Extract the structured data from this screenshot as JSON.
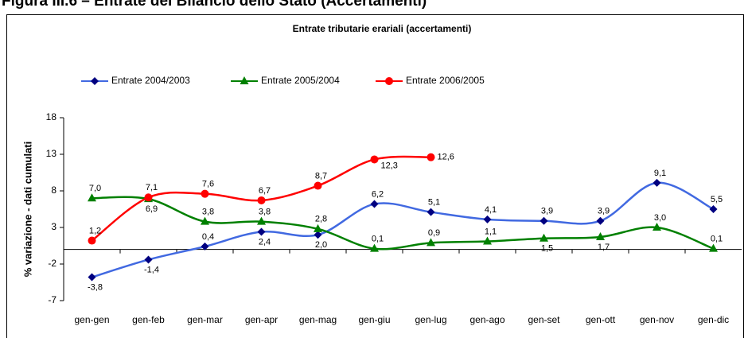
{
  "page_title": "Figura III.6 – Entrate del Bilancio dello Stato (Accertamenti)",
  "chart_data": {
    "type": "line",
    "title": "Entrate tributarie erariali (accertamenti)",
    "y_label": "% variazione - dati cumulati",
    "categories": [
      "gen-gen",
      "gen-feb",
      "gen-mar",
      "gen-apr",
      "gen-mag",
      "gen-giu",
      "gen-lug",
      "gen-ago",
      "gen-set",
      "gen-ott",
      "gen-nov",
      "gen-dic"
    ],
    "ylim": [
      -7,
      18
    ],
    "yticks": [
      -7,
      -2,
      3,
      8,
      13,
      18
    ],
    "series": [
      {
        "name": "Entrate 2004/2003",
        "color": "#4169e1",
        "marker_color": "#000080",
        "marker": "diamond",
        "values": [
          -3.8,
          -1.4,
          0.4,
          2.4,
          2.0,
          6.2,
          5.1,
          4.1,
          3.9,
          3.9,
          9.1,
          5.5
        ],
        "value_labels": [
          "-3,8",
          "-1,4",
          "0,4",
          "2,4",
          "2,0",
          "6,2",
          "5,1",
          "4,1",
          "3,9",
          "3,9",
          "9,1",
          "5,5"
        ]
      },
      {
        "name": "Entrate 2005/2004",
        "color": "#008000",
        "marker_color": "#008000",
        "marker": "triangle",
        "values": [
          7.0,
          6.9,
          3.8,
          3.8,
          2.8,
          0.1,
          0.9,
          1.1,
          1.5,
          1.7,
          3.0,
          0.1
        ],
        "value_labels": [
          "7,0",
          "6,9",
          "3,8",
          "3,8",
          "2,8",
          "0,1",
          "0,9",
          "1,1",
          "1,5",
          "1,7",
          "3,0",
          "0,1"
        ]
      },
      {
        "name": "Entrate 2006/2005",
        "color": "#ff0000",
        "marker_color": "#ff0000",
        "marker": "circle",
        "values": [
          1.2,
          7.1,
          7.6,
          6.7,
          8.7,
          12.3,
          12.6,
          null,
          null,
          null,
          null,
          null
        ],
        "value_labels": [
          "1,2",
          "7,1",
          "7,6",
          "6,7",
          "8,7",
          "12,3",
          "12,6",
          null,
          null,
          null,
          null,
          null
        ]
      }
    ]
  }
}
